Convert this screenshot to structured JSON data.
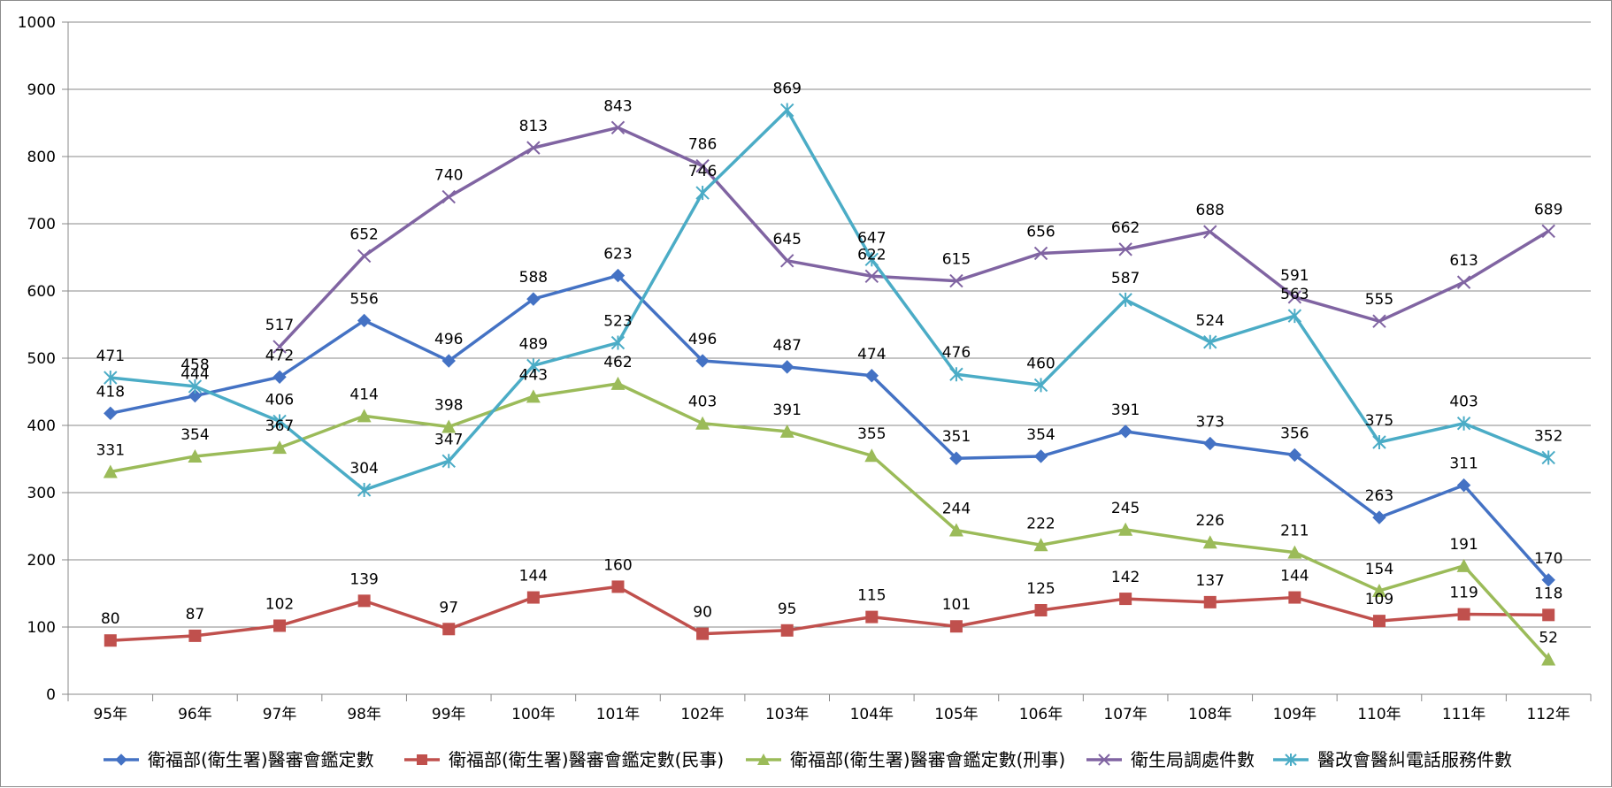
{
  "chart_data": {
    "type": "line",
    "title": "",
    "xlabel": "",
    "ylabel": "",
    "ylim": [
      0,
      1000
    ],
    "y_ticks": [
      0,
      100,
      200,
      300,
      400,
      500,
      600,
      700,
      800,
      900,
      1000
    ],
    "grid": true,
    "legend_position": "bottom",
    "categories": [
      "95年",
      "96年",
      "97年",
      "98年",
      "99年",
      "100年",
      "101年",
      "102年",
      "103年",
      "104年",
      "105年",
      "106年",
      "107年",
      "108年",
      "109年",
      "110年",
      "111年",
      "112年"
    ],
    "series": [
      {
        "name": "衛福部(衛生署)醫審會鑑定數",
        "color": "#4472C4",
        "marker": "diamond",
        "values": [
          418,
          444,
          472,
          556,
          496,
          588,
          623,
          496,
          487,
          474,
          351,
          354,
          391,
          373,
          356,
          263,
          311,
          170
        ]
      },
      {
        "name": "衛福部(衛生署)醫審會鑑定數(民事)",
        "color": "#C0504D",
        "marker": "square",
        "values": [
          80,
          87,
          102,
          139,
          97,
          144,
          160,
          90,
          95,
          115,
          101,
          125,
          142,
          137,
          144,
          109,
          119,
          118
        ]
      },
      {
        "name": "衛福部(衛生署)醫審會鑑定數(刑事)",
        "color": "#9BBB59",
        "marker": "triangle",
        "values": [
          331,
          354,
          367,
          414,
          398,
          443,
          462,
          403,
          391,
          355,
          244,
          222,
          245,
          226,
          211,
          154,
          191,
          52
        ]
      },
      {
        "name": "衛生局調處件數",
        "color": "#8064A2",
        "marker": "x",
        "values": [
          null,
          null,
          517,
          652,
          740,
          813,
          843,
          786,
          645,
          622,
          615,
          656,
          662,
          688,
          591,
          555,
          613,
          689
        ]
      },
      {
        "name": "醫改會醫糾電話服務件數",
        "color": "#4BACC6",
        "marker": "star",
        "values": [
          471,
          458,
          406,
          304,
          347,
          489,
          523,
          746,
          869,
          647,
          476,
          460,
          587,
          524,
          563,
          375,
          403,
          352
        ]
      }
    ]
  }
}
